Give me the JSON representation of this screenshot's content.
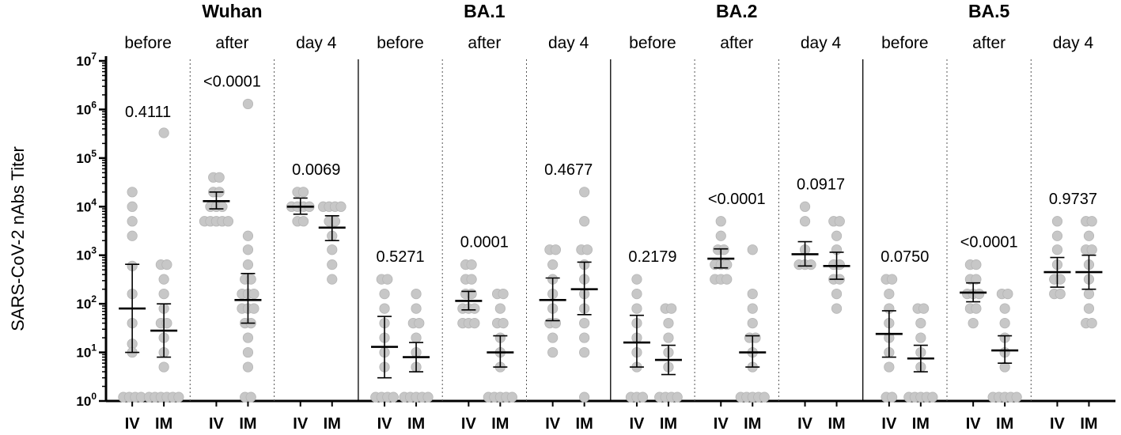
{
  "chart_data": {
    "type": "scatter",
    "title": "",
    "ylabel": "SARS-CoV-2 nAbs Titer",
    "yscale": "log10",
    "ylim": [
      1,
      10000000
    ],
    "y_ticks": [
      {
        "base": "10",
        "exp": "0"
      },
      {
        "base": "10",
        "exp": "1"
      },
      {
        "base": "10",
        "exp": "2"
      },
      {
        "base": "10",
        "exp": "3"
      },
      {
        "base": "10",
        "exp": "4"
      },
      {
        "base": "10",
        "exp": "5"
      },
      {
        "base": "10",
        "exp": "6"
      },
      {
        "base": "10",
        "exp": "7"
      }
    ],
    "groups": [
      "IV",
      "IM"
    ],
    "variants": [
      {
        "name": "Wuhan",
        "panels": [
          {
            "timepoint": "before",
            "p_value": "0.4111",
            "IV": {
              "points": [
                20000,
                10000,
                5000,
                2500,
                600,
                160,
                40,
                15,
                10,
                1.2,
                1.2,
                1.2,
                1.2
              ],
              "geomean": 80,
              "ci": [
                10,
                650
              ]
            },
            "IM": {
              "points": [
                330000,
                640,
                640,
                320,
                160,
                80,
                40,
                40,
                20,
                10,
                5,
                1.2,
                1.2,
                1.2,
                1.2,
                1.2,
                1.2
              ],
              "geomean": 28,
              "ci": [
                8,
                100
              ]
            }
          },
          {
            "timepoint": "after",
            "p_value": "<0.0001",
            "IV": {
              "points": [
                40000,
                40000,
                20000,
                20000,
                10000,
                10000,
                10000,
                5000,
                5000,
                5000,
                5000,
                5000
              ],
              "geomean": 13000,
              "ci": [
                9000,
                20000
              ]
            },
            "IM": {
              "points": [
                1300000,
                2500,
                1300,
                640,
                320,
                320,
                160,
                160,
                160,
                80,
                80,
                80,
                40,
                40,
                20,
                10,
                5,
                1.2,
                1.2
              ],
              "geomean": 120,
              "ci": [
                40,
                420
              ]
            }
          },
          {
            "timepoint": "day 4",
            "p_value": "0.0069",
            "IV": {
              "points": [
                20000,
                20000,
                10000,
                10000,
                10000,
                10000,
                5000,
                5000
              ],
              "geomean": 10000,
              "ci": [
                7000,
                15000
              ]
            },
            "IM": {
              "points": [
                10000,
                10000,
                10000,
                10000,
                5000,
                5000,
                2500,
                1300,
                640,
                320
              ],
              "geomean": 3700,
              "ci": [
                2000,
                6500
              ]
            }
          }
        ]
      },
      {
        "name": "BA.1",
        "panels": [
          {
            "timepoint": "before",
            "p_value": "0.5271",
            "IV": {
              "points": [
                320,
                320,
                160,
                80,
                40,
                20,
                10,
                5,
                1.2,
                1.2,
                1.2,
                1.2
              ],
              "geomean": 13,
              "ci": [
                3,
                55
              ]
            },
            "IM": {
              "points": [
                160,
                80,
                40,
                40,
                20,
                10,
                5,
                1.2,
                1.2,
                1.2,
                1.2,
                1.2
              ],
              "geomean": 8,
              "ci": [
                4,
                16
              ]
            }
          },
          {
            "timepoint": "after",
            "p_value": "0.0001",
            "IV": {
              "points": [
                640,
                640,
                320,
                320,
                160,
                160,
                80,
                80,
                80,
                40,
                40,
                40
              ],
              "geomean": 115,
              "ci": [
                75,
                180
              ]
            },
            "IM": {
              "points": [
                160,
                160,
                80,
                40,
                40,
                20,
                10,
                5,
                1.2,
                1.2,
                1.2,
                1.2,
                1.2
              ],
              "geomean": 10,
              "ci": [
                5,
                22
              ]
            }
          },
          {
            "timepoint": "day 4",
            "p_value": "0.4677",
            "IV": {
              "points": [
                1300,
                1300,
                640,
                320,
                160,
                80,
                40,
                40,
                20,
                10
              ],
              "geomean": 120,
              "ci": [
                45,
                340
              ]
            },
            "IM": {
              "points": [
                20000,
                5000,
                1300,
                1300,
                640,
                320,
                160,
                80,
                40,
                20,
                10,
                1.2
              ],
              "geomean": 200,
              "ci": [
                60,
                720
              ]
            }
          }
        ]
      },
      {
        "name": "BA.2",
        "panels": [
          {
            "timepoint": "before",
            "p_value": "0.2179",
            "IV": {
              "points": [
                320,
                160,
                80,
                40,
                20,
                10,
                5,
                1.2,
                1.2,
                1.2
              ],
              "geomean": 16,
              "ci": [
                5,
                58
              ]
            },
            "IM": {
              "points": [
                80,
                80,
                40,
                20,
                10,
                5,
                1.2,
                1.2,
                1.2,
                1.2
              ],
              "geomean": 7,
              "ci": [
                3.5,
                14
              ]
            }
          },
          {
            "timepoint": "after",
            "p_value": "<0.0001",
            "IV": {
              "points": [
                5000,
                2500,
                1300,
                1300,
                640,
                640,
                640,
                320,
                320,
                320
              ],
              "geomean": 850,
              "ci": [
                550,
                1350
              ]
            },
            "IM": {
              "points": [
                1300,
                160,
                80,
                40,
                20,
                20,
                10,
                5,
                1.2,
                1.2,
                1.2,
                1.2,
                1.2
              ],
              "geomean": 10,
              "ci": [
                5,
                22
              ]
            }
          },
          {
            "timepoint": "day 4",
            "p_value": "0.0917",
            "IV": {
              "points": [
                10000,
                5000,
                1300,
                640,
                640,
                640
              ],
              "geomean": 1050,
              "ci": [
                600,
                1900
              ]
            },
            "IM": {
              "points": [
                5000,
                5000,
                2500,
                1300,
                640,
                640,
                320,
                320,
                160,
                80
              ],
              "geomean": 600,
              "ci": [
                320,
                1150
              ]
            }
          }
        ]
      },
      {
        "name": "BA.5",
        "panels": [
          {
            "timepoint": "before",
            "p_value": "0.0750",
            "IV": {
              "points": [
                320,
                320,
                160,
                80,
                40,
                20,
                10,
                5,
                1.2,
                1.2
              ],
              "geomean": 24,
              "ci": [
                8,
                72
              ]
            },
            "IM": {
              "points": [
                80,
                80,
                40,
                20,
                10,
                5,
                1.2,
                1.2,
                1.2,
                1.2,
                1.2
              ],
              "geomean": 7.5,
              "ci": [
                4,
                14
              ]
            }
          },
          {
            "timepoint": "after",
            "p_value": "<0.0001",
            "IV": {
              "points": [
                640,
                640,
                320,
                320,
                160,
                160,
                160,
                80,
                80,
                40
              ],
              "geomean": 170,
              "ci": [
                110,
                270
              ]
            },
            "IM": {
              "points": [
                160,
                160,
                80,
                40,
                20,
                10,
                5,
                1.2,
                1.2,
                1.2,
                1.2,
                1.2
              ],
              "geomean": 11,
              "ci": [
                6,
                22
              ]
            }
          },
          {
            "timepoint": "day 4",
            "p_value": "0.9737",
            "IV": {
              "points": [
                5000,
                2500,
                1300,
                640,
                320,
                320,
                160,
                160
              ],
              "geomean": 450,
              "ci": [
                220,
                900
              ]
            },
            "IM": {
              "points": [
                5000,
                5000,
                2500,
                1300,
                1300,
                640,
                320,
                160,
                80,
                40,
                40
              ],
              "geomean": 450,
              "ci": [
                200,
                1000
              ]
            }
          }
        ]
      }
    ]
  }
}
